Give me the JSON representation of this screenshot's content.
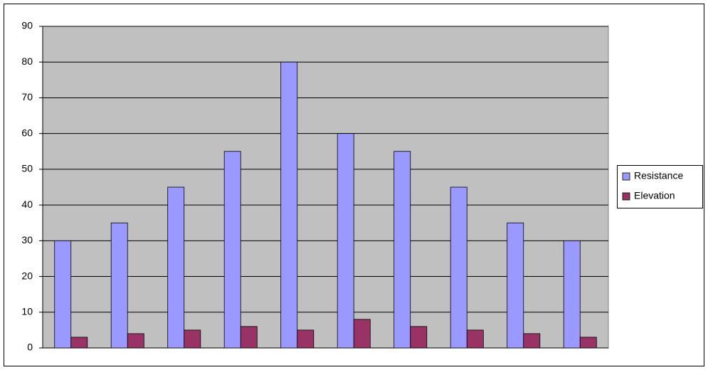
{
  "chart_data": {
    "type": "bar",
    "categories": [
      null,
      null,
      null,
      null,
      null,
      null,
      null,
      null,
      null,
      null
    ],
    "series": [
      {
        "name": "Resistance",
        "color": "#9999ff",
        "values": [
          30,
          35,
          45,
          55,
          80,
          60,
          55,
          45,
          35,
          30
        ]
      },
      {
        "name": "Elevation",
        "color": "#993366",
        "values": [
          3,
          4,
          5,
          6,
          5,
          8,
          6,
          5,
          4,
          3
        ]
      }
    ],
    "ylim": [
      0,
      90
    ],
    "yticks": [
      0,
      10,
      20,
      30,
      40,
      50,
      60,
      70,
      80,
      90
    ],
    "grid": true,
    "legend": "right"
  }
}
